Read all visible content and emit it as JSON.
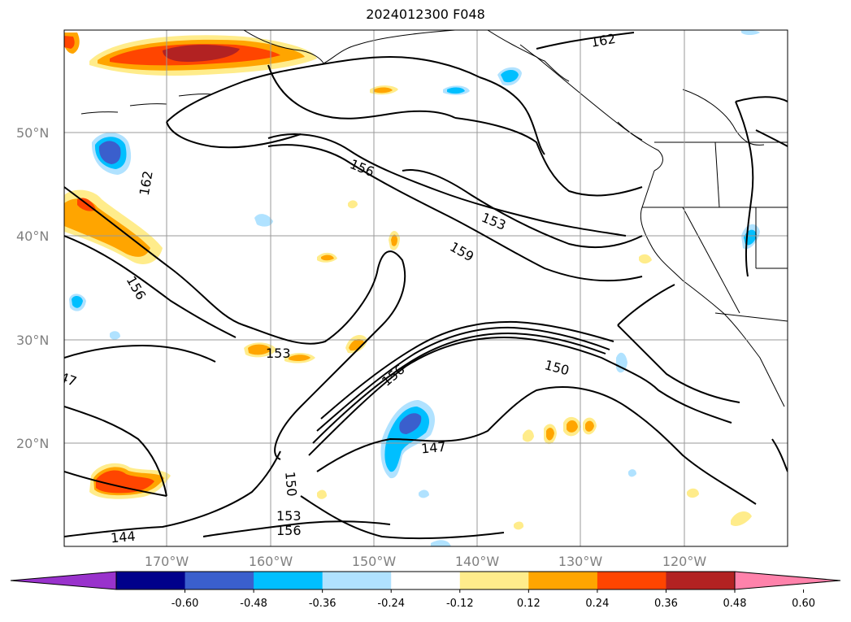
{
  "title": "2024012300 F048",
  "latitude_labels": [
    "50°N",
    "40°N",
    "30°N",
    "20°N"
  ],
  "longitude_labels": [
    "170°W",
    "160°W",
    "150°W",
    "140°W",
    "130°W",
    "120°W"
  ],
  "contour_labels": [
    "162",
    "156",
    "153",
    "159",
    "162",
    "156",
    "153",
    "150",
    "156",
    "147",
    "150",
    "153",
    "156",
    "144",
    "47"
  ],
  "colorbar": {
    "ticks": [
      "-0.60",
      "-0.48",
      "-0.36",
      "-0.24",
      "-0.12",
      "0.12",
      "0.24",
      "0.36",
      "0.48",
      "0.60"
    ],
    "colors": [
      "#9932cc",
      "#00008b",
      "#3a5fcd",
      "#00bfff",
      "#b0e2ff",
      "#ffffff",
      "#ffec8b",
      "#ffa500",
      "#ff4500",
      "#b22222",
      "#ff82ab"
    ]
  },
  "chart_data": {
    "type": "map",
    "title": "2024012300 F048",
    "projection": "lat-lon",
    "lat_range": [
      10,
      60
    ],
    "lon_range": [
      -180,
      -110
    ],
    "grid": true,
    "legend": "colorbar bottom"
  }
}
